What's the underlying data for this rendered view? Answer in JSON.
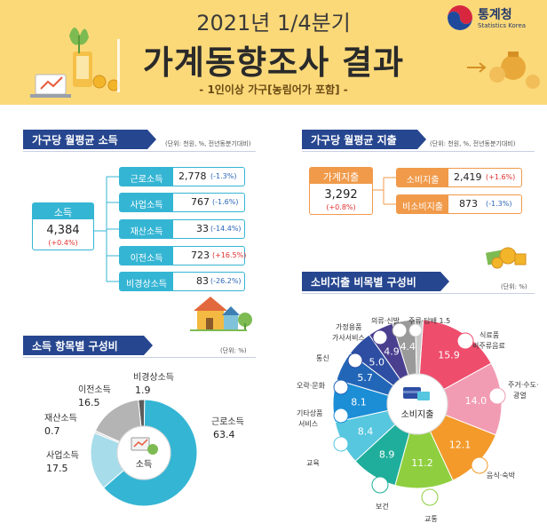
{
  "header": {
    "title_line1": "2021년 1/4분기",
    "title_line2": "가계동향조사 결과",
    "subtitle": "- 1인이상 가구[농림어가 포함] -",
    "agency_name": "통계청",
    "agency_name_en": "Statistics Korea"
  },
  "income": {
    "banner": "가구당 월평균 소득",
    "unit": "(단위: 천원, %, 전년동분기대비)",
    "total": {
      "label": "소득",
      "value": "4,384",
      "change": "(+0.4%)"
    },
    "items": [
      {
        "label": "근로소득",
        "value": "2,778",
        "change": "(-1.3%)",
        "up": false
      },
      {
        "label": "사업소득",
        "value": "767",
        "change": "(-1.6%)",
        "up": false
      },
      {
        "label": "재산소득",
        "value": "33",
        "change": "(-14.4%)",
        "up": false
      },
      {
        "label": "이전소득",
        "value": "723",
        "change": "(+16.5%)",
        "up": true
      },
      {
        "label": "비경상소득",
        "value": "83",
        "change": "(-26.2%)",
        "up": false
      }
    ]
  },
  "expenditure": {
    "banner": "가구당 월평균 지출",
    "unit": "(단위: 천원, %, 전년동분기대비)",
    "total": {
      "label": "가계지출",
      "value": "3,292",
      "change": "(+0.8%)"
    },
    "items": [
      {
        "label": "소비지출",
        "value": "2,419",
        "change": "(+1.6%)",
        "up": true
      },
      {
        "label": "비소비지출",
        "value": "873",
        "change": "(-1.3%)",
        "up": false
      }
    ]
  },
  "income_share": {
    "banner": "소득 항목별 구성비",
    "unit": "(단위: %)",
    "center_label": "소득",
    "chart_data": {
      "type": "pie",
      "series": [
        {
          "name": "근로소득",
          "value": 63.4,
          "color": "#35b5d4"
        },
        {
          "name": "사업소득",
          "value": 17.5,
          "color": "#a7dcea"
        },
        {
          "name": "재산소득",
          "value": 0.7,
          "color": "#d9d9d9"
        },
        {
          "name": "이전소득",
          "value": 16.5,
          "color": "#b4b4b4"
        },
        {
          "name": "비경상소득",
          "value": 1.9,
          "color": "#5b5b5b"
        }
      ]
    },
    "labels": [
      {
        "name": "근로소득",
        "value": "63.4"
      },
      {
        "name": "사업소득",
        "value": "17.5"
      },
      {
        "name": "재산소득",
        "value": "0.7"
      },
      {
        "name": "이전소득",
        "value": "16.5"
      },
      {
        "name": "비경상소득",
        "value": "1.9"
      }
    ]
  },
  "consumption_share": {
    "banner": "소비지출 비목별 구성비",
    "unit": "(단위: %)",
    "center_label": "소비지출",
    "chart_data": {
      "type": "pie",
      "series": [
        {
          "name": "식료품·비주류음료",
          "value": 15.9,
          "color": "#ef4d6c"
        },
        {
          "name": "주거·수도·광열",
          "value": 14.0,
          "color": "#f29cb3"
        },
        {
          "name": "음식·숙박",
          "value": 12.1,
          "color": "#f39a2b"
        },
        {
          "name": "교통",
          "value": 11.2,
          "color": "#8fcf3f"
        },
        {
          "name": "보건",
          "value": 8.9,
          "color": "#1fae9b"
        },
        {
          "name": "교육",
          "value": 8.4,
          "color": "#56c7df"
        },
        {
          "name": "기타상품·서비스",
          "value": 8.1,
          "color": "#1c8ed6"
        },
        {
          "name": "오락·문화",
          "value": 5.7,
          "color": "#2266b8"
        },
        {
          "name": "통신",
          "value": 5.0,
          "color": "#2d4ea2"
        },
        {
          "name": "가정용품·가사서비스",
          "value": 4.9,
          "color": "#4a3f8f"
        },
        {
          "name": "의류·신발",
          "value": 4.4,
          "color": "#9a9a9a"
        },
        {
          "name": "주류·담배",
          "value": 1.5,
          "color": "#c9c9c9"
        }
      ]
    },
    "label_texts": {
      "food_1": "식료품",
      "food_2": "비주류음료",
      "housing_1": "주거·수도·",
      "housing_2": "광열",
      "dining": "음식·숙박",
      "transport": "교통",
      "health": "보건",
      "education": "교육",
      "misc_1": "기타상품",
      "misc_2": "서비스",
      "recreation": "오락·문화",
      "comm": "통신",
      "household_1": "가정용품",
      "household_2": "가사서비스",
      "clothing": "의류·신발",
      "alcohol": "주류·담배 1.5"
    }
  }
}
